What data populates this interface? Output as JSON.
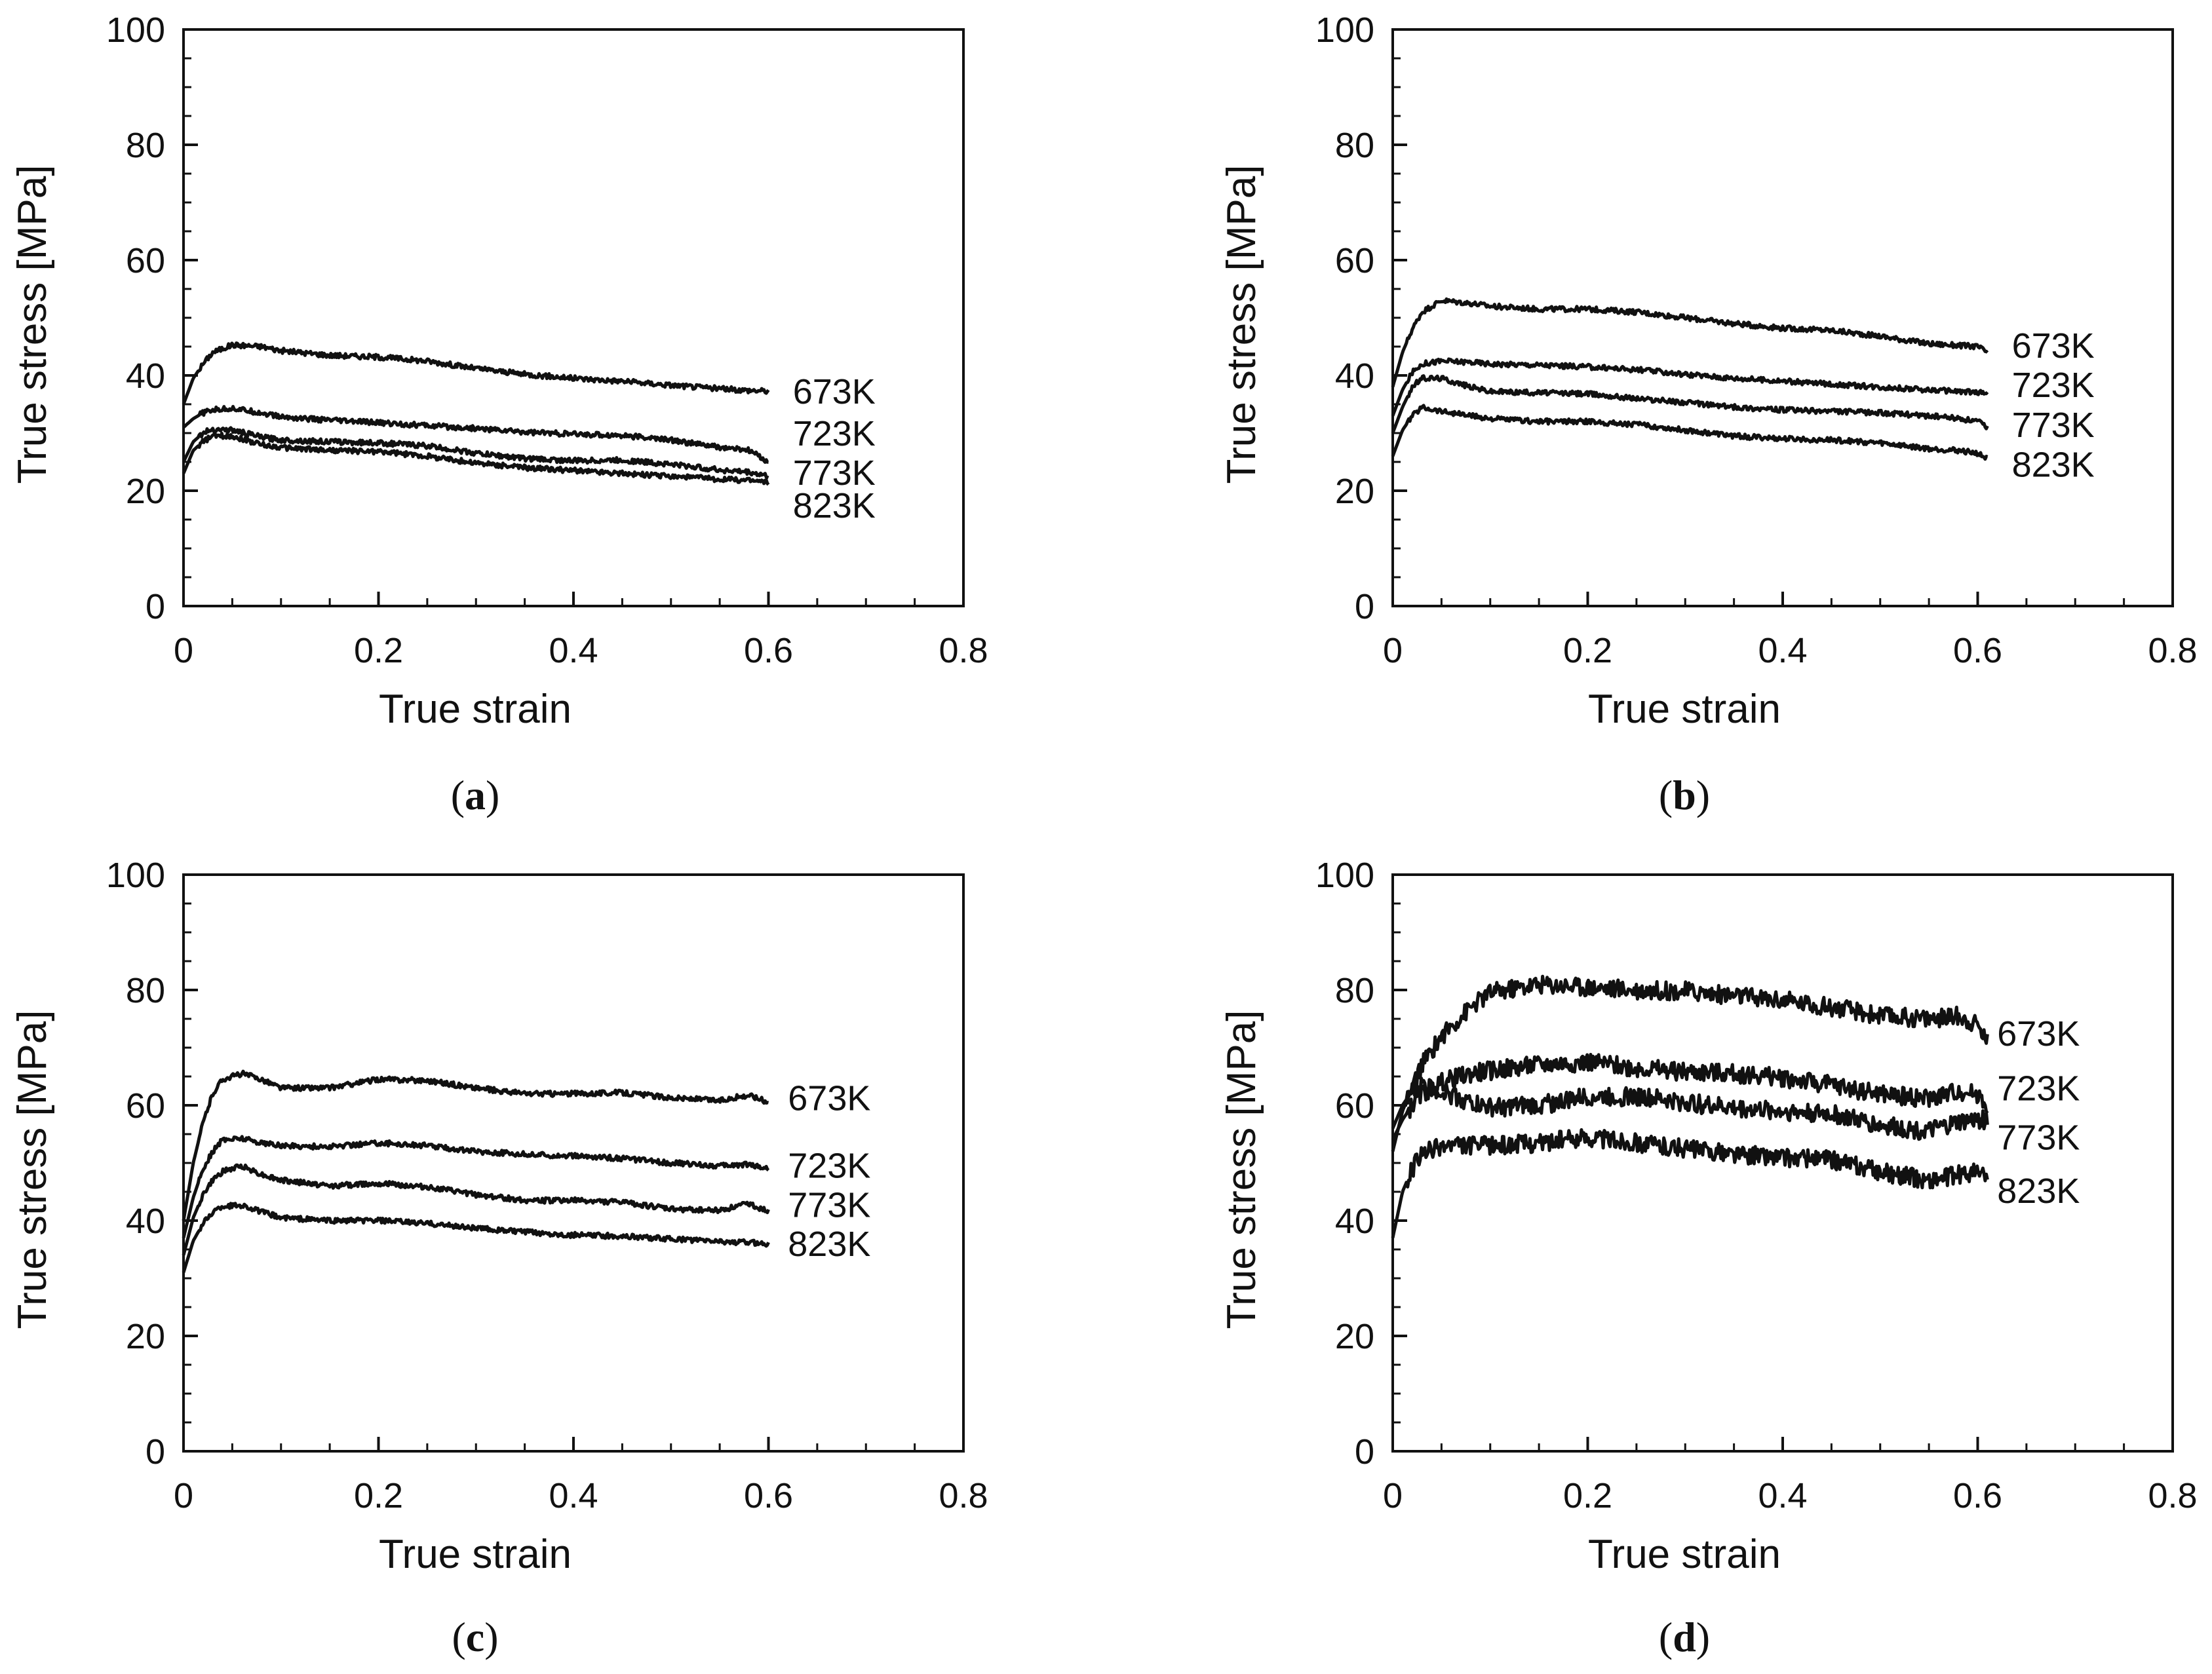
{
  "chart_data": [
    {
      "type": "line",
      "panel_label": "a",
      "caption_open": "(",
      "caption_close": ")",
      "xlabel": "True strain",
      "ylabel": "True stress [MPa]",
      "xlim": [
        0,
        0.8
      ],
      "ylim": [
        0,
        100
      ],
      "xticks": [
        "0",
        "0.2",
        "0.4",
        "0.6",
        "0.8"
      ],
      "yticks": [
        "0",
        "20",
        "40",
        "60",
        "80",
        "100"
      ],
      "x": [
        0,
        0.01,
        0.02,
        0.03,
        0.05,
        0.08,
        0.1,
        0.15,
        0.2,
        0.25,
        0.3,
        0.35,
        0.4,
        0.45,
        0.5,
        0.55,
        0.58,
        0.6
      ],
      "series": [
        {
          "name": "673K",
          "values": [
            35,
            39.5,
            42,
            44,
            45.3,
            45,
            44.3,
            43.5,
            43.2,
            42.5,
            41.2,
            40.2,
            39.5,
            39,
            38.3,
            37.7,
            37.4,
            37.3
          ]
        },
        {
          "name": "723K",
          "values": [
            31,
            32.5,
            33.5,
            34,
            34.3,
            33.5,
            32.8,
            32.2,
            31.8,
            31.3,
            30.8,
            30.2,
            29.8,
            29.6,
            28.8,
            27.5,
            27,
            25
          ]
        },
        {
          "name": "773K",
          "values": [
            25,
            28.5,
            30,
            30.7,
            30.5,
            29.3,
            28.8,
            28.5,
            28.3,
            27.8,
            26.5,
            25.6,
            25.2,
            25.3,
            24.6,
            23.6,
            23.2,
            22.5
          ]
        },
        {
          "name": "823K",
          "values": [
            23,
            27,
            28.5,
            29.5,
            29.5,
            28,
            27.5,
            27,
            26.8,
            26,
            24.8,
            24,
            23.5,
            23,
            22.5,
            22,
            21.8,
            21.5
          ]
        }
      ]
    },
    {
      "type": "line",
      "panel_label": "b",
      "caption_open": "(",
      "caption_close": ")",
      "xlabel": "True strain",
      "ylabel": "True stress [MPa]",
      "xlim": [
        0,
        0.8
      ],
      "ylim": [
        0,
        100
      ],
      "xticks": [
        "0",
        "0.2",
        "0.4",
        "0.6",
        "0.8"
      ],
      "yticks": [
        "0",
        "20",
        "40",
        "60",
        "80",
        "100"
      ],
      "x": [
        0,
        0.01,
        0.02,
        0.03,
        0.05,
        0.08,
        0.1,
        0.15,
        0.2,
        0.25,
        0.3,
        0.35,
        0.4,
        0.45,
        0.5,
        0.55,
        0.58,
        0.6,
        0.61
      ],
      "series": [
        {
          "name": "673K",
          "values": [
            38,
            44,
            48,
            51,
            53,
            52.5,
            52,
            51.5,
            51.5,
            51,
            50,
            49,
            48.2,
            47.8,
            46.8,
            45.5,
            45.2,
            45,
            44
          ]
        },
        {
          "name": "723K",
          "values": [
            33,
            37.5,
            40.5,
            42,
            42.5,
            42.3,
            42,
            41.8,
            41.5,
            41,
            40.2,
            39.5,
            39,
            38.5,
            38,
            37.5,
            37.2,
            37,
            37
          ]
        },
        {
          "name": "773K",
          "values": [
            30,
            34.5,
            38,
            39.5,
            39.5,
            38,
            37.2,
            37,
            36.8,
            36,
            35.3,
            34.5,
            34,
            33.8,
            33.5,
            33,
            32.5,
            32,
            31
          ]
        },
        {
          "name": "823K",
          "values": [
            26,
            30.5,
            33,
            34.5,
            33.8,
            33,
            32.5,
            32,
            32,
            31.5,
            30.5,
            29.5,
            29,
            28.8,
            28.3,
            27.3,
            27,
            26.5,
            25.5
          ]
        }
      ]
    },
    {
      "type": "line",
      "panel_label": "c",
      "caption_open": "(",
      "caption_close": ")",
      "xlabel": "True strain",
      "ylabel": "True stress [MPa]",
      "xlim": [
        0,
        0.8
      ],
      "ylim": [
        0,
        100
      ],
      "xticks": [
        "0",
        "0.2",
        "0.4",
        "0.6",
        "0.8"
      ],
      "yticks": [
        "0",
        "20",
        "40",
        "60",
        "80",
        "100"
      ],
      "x": [
        0,
        0.01,
        0.02,
        0.03,
        0.04,
        0.06,
        0.08,
        0.1,
        0.15,
        0.2,
        0.25,
        0.3,
        0.35,
        0.4,
        0.45,
        0.5,
        0.55,
        0.58,
        0.6
      ],
      "series": [
        {
          "name": "673K",
          "values": [
            40,
            50,
            57,
            62,
            64.5,
            65.5,
            64.5,
            63,
            63,
            64.5,
            64.3,
            63,
            62,
            62,
            62.2,
            61.3,
            60.8,
            61.8,
            60.5
          ]
        },
        {
          "name": "723K",
          "values": [
            37,
            44,
            49,
            52,
            54,
            54.3,
            53.5,
            53,
            52.8,
            53.5,
            53,
            52,
            51.5,
            51.2,
            50.8,
            50,
            49.5,
            49.8,
            49
          ]
        },
        {
          "name": "773K",
          "values": [
            34,
            40.5,
            44.5,
            47,
            48.5,
            49.5,
            48,
            47,
            46,
            46.5,
            45.8,
            44.5,
            43.5,
            43.5,
            43.2,
            42,
            41.8,
            43,
            41.5
          ]
        },
        {
          "name": "823K",
          "values": [
            31,
            36.5,
            39.5,
            41.5,
            42.5,
            42.7,
            41.5,
            40.5,
            40,
            40,
            39.5,
            38.7,
            38,
            37.5,
            37.3,
            36.8,
            36.4,
            36.2,
            36
          ]
        }
      ]
    },
    {
      "type": "line",
      "panel_label": "d",
      "caption_open": "(",
      "caption_close": ")",
      "xlabel": "True strain",
      "ylabel": "True stress [MPa]",
      "xlim": [
        0,
        0.8
      ],
      "ylim": [
        0,
        100
      ],
      "xticks": [
        "0",
        "0.2",
        "0.4",
        "0.6",
        "0.8"
      ],
      "yticks": [
        "0",
        "20",
        "40",
        "60",
        "80",
        "100"
      ],
      "x": [
        0,
        0.01,
        0.02,
        0.03,
        0.05,
        0.08,
        0.1,
        0.15,
        0.2,
        0.25,
        0.3,
        0.35,
        0.4,
        0.45,
        0.5,
        0.55,
        0.58,
        0.6,
        0.61
      ],
      "series": [
        {
          "name": "673K",
          "values": [
            52,
            59,
            63,
            67,
            72,
            77,
            79.5,
            81,
            80.5,
            80,
            79.8,
            79,
            78.2,
            77,
            75.5,
            75,
            75.5,
            74,
            71
          ]
        },
        {
          "name": "723K",
          "values": [
            54,
            57.5,
            60,
            62,
            64,
            65.5,
            66,
            67,
            67.5,
            66.5,
            65.8,
            65.5,
            64.8,
            63.5,
            62,
            61.2,
            62.5,
            62,
            60
          ]
        },
        {
          "name": "773K",
          "values": [
            56,
            60,
            62.5,
            63.5,
            62.5,
            60.5,
            59.5,
            60,
            61.5,
            61.5,
            60.5,
            59.5,
            59,
            58.5,
            56.5,
            55.5,
            57,
            57.5,
            57.5
          ]
        },
        {
          "name": "823K",
          "values": [
            37,
            45,
            49,
            51.5,
            53,
            53,
            53,
            53.5,
            54.5,
            53.5,
            52.5,
            51.5,
            51,
            50.5,
            48.5,
            47,
            48,
            48.5,
            47.5
          ]
        }
      ]
    }
  ]
}
